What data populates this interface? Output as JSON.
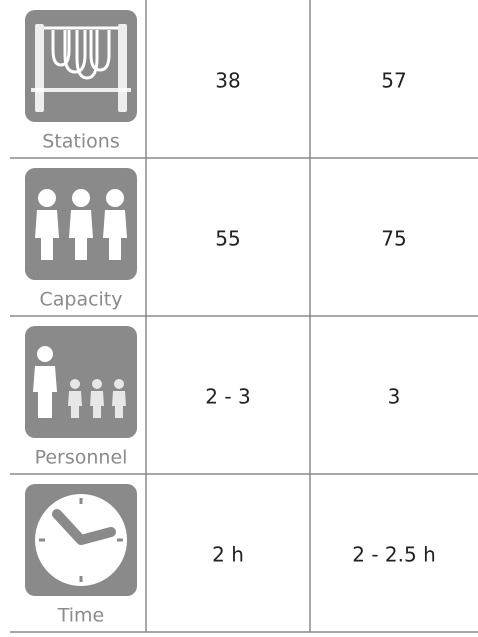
{
  "table": {
    "rows": [
      {
        "label": "Stations",
        "cells": [
          "38",
          "57"
        ]
      },
      {
        "label": "Capacity",
        "cells": [
          "55",
          "75"
        ]
      },
      {
        "label": "Personnel",
        "cells": [
          "2 - 3",
          "3"
        ]
      },
      {
        "label": "Time",
        "cells": [
          "2 h",
          "2 - 2.5 h"
        ]
      }
    ]
  }
}
